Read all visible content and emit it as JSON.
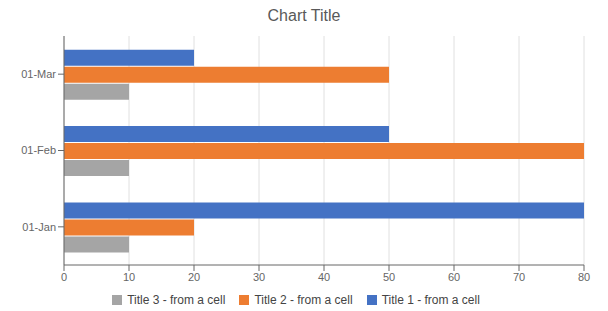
{
  "chart_data": {
    "type": "bar",
    "orientation": "horizontal",
    "title": "Chart Title",
    "categories": [
      "01-Jan",
      "01-Feb",
      "01-Mar"
    ],
    "series": [
      {
        "name": "Title 1 - from a cell",
        "values": [
          80,
          50,
          20
        ],
        "color": "#4472c4"
      },
      {
        "name": "Title 2 - from a cell",
        "values": [
          20,
          80,
          50
        ],
        "color": "#ed7d31"
      },
      {
        "name": "Title 3 - from a cell",
        "values": [
          10,
          10,
          10
        ],
        "color": "#a5a5a5"
      }
    ],
    "xlim": [
      0,
      80
    ],
    "xticks": [
      0,
      10,
      20,
      30,
      40,
      50,
      60,
      70,
      80
    ],
    "grid": true,
    "legend": "bottom"
  }
}
